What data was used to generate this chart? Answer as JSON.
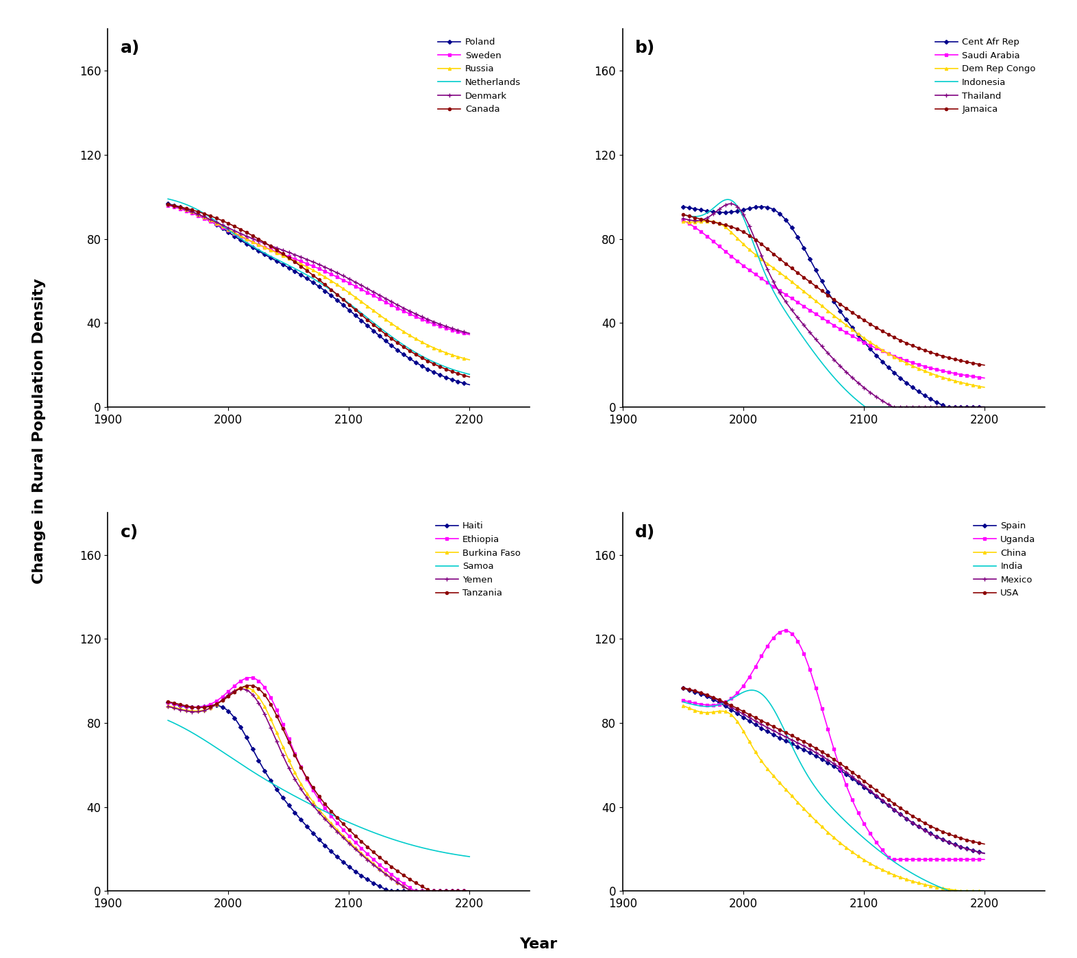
{
  "xlabel": "Year",
  "ylabel": "Change in Rural Population Density",
  "xlim": [
    1900,
    2250
  ],
  "ylim": [
    0,
    180
  ],
  "yticks": [
    0,
    40,
    80,
    120,
    160
  ],
  "xticks": [
    1900,
    2000,
    2100,
    2200
  ],
  "panel_a": {
    "label": "a)",
    "series": [
      {
        "name": "Poland",
        "color": "#00008B",
        "marker": "D",
        "ms": 3
      },
      {
        "name": "Sweden",
        "color": "#FF00FF",
        "marker": "s",
        "ms": 3
      },
      {
        "name": "Russia",
        "color": "#FFD700",
        "marker": "^",
        "ms": 3
      },
      {
        "name": "Netherlands",
        "color": "#00CCCC",
        "marker": null,
        "ms": 0
      },
      {
        "name": "Denmark",
        "color": "#800080",
        "marker": "+",
        "ms": 4
      },
      {
        "name": "Canada",
        "color": "#8B0000",
        "marker": "o",
        "ms": 3
      }
    ]
  },
  "panel_b": {
    "label": "b)",
    "series": [
      {
        "name": "Cent Afr Rep",
        "color": "#00008B",
        "marker": "D",
        "ms": 3
      },
      {
        "name": "Saudi Arabia",
        "color": "#FF00FF",
        "marker": "s",
        "ms": 3
      },
      {
        "name": "Dem Rep Congo",
        "color": "#FFD700",
        "marker": "^",
        "ms": 3
      },
      {
        "name": "Indonesia",
        "color": "#00CCCC",
        "marker": null,
        "ms": 0
      },
      {
        "name": "Thailand",
        "color": "#800080",
        "marker": "+",
        "ms": 4
      },
      {
        "name": "Jamaica",
        "color": "#8B0000",
        "marker": "o",
        "ms": 3
      }
    ]
  },
  "panel_c": {
    "label": "c)",
    "series": [
      {
        "name": "Haiti",
        "color": "#00008B",
        "marker": "D",
        "ms": 3
      },
      {
        "name": "Ethiopia",
        "color": "#FF00FF",
        "marker": "s",
        "ms": 3
      },
      {
        "name": "Burkina Faso",
        "color": "#FFD700",
        "marker": "^",
        "ms": 3
      },
      {
        "name": "Samoa",
        "color": "#00CCCC",
        "marker": null,
        "ms": 0
      },
      {
        "name": "Yemen",
        "color": "#800080",
        "marker": "+",
        "ms": 4
      },
      {
        "name": "Tanzania",
        "color": "#8B0000",
        "marker": "o",
        "ms": 3
      }
    ]
  },
  "panel_d": {
    "label": "d)",
    "series": [
      {
        "name": "Spain",
        "color": "#00008B",
        "marker": "D",
        "ms": 3
      },
      {
        "name": "Uganda",
        "color": "#FF00FF",
        "marker": "s",
        "ms": 3
      },
      {
        "name": "China",
        "color": "#FFD700",
        "marker": "^",
        "ms": 3
      },
      {
        "name": "India",
        "color": "#00CCCC",
        "marker": null,
        "ms": 0
      },
      {
        "name": "Mexico",
        "color": "#800080",
        "marker": "+",
        "ms": 4
      },
      {
        "name": "USA",
        "color": "#8B0000",
        "marker": "o",
        "ms": 3
      }
    ]
  }
}
